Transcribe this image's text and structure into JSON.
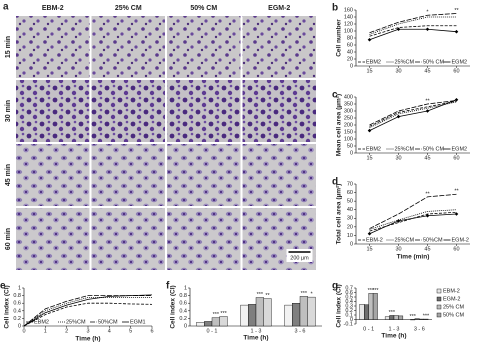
{
  "micrograph_panel": {
    "panel": "a",
    "columns": [
      "EBM-2",
      "25% CM",
      "50% CM",
      "EGM-2"
    ],
    "rows": [
      "15 min",
      "30 min",
      "45 min",
      "60 min"
    ],
    "scale_bar": "200 µm"
  },
  "chart_data": [
    {
      "panel": "b",
      "type": "line",
      "ylabel": "Cell number",
      "x": [
        15,
        30,
        45,
        60
      ],
      "xlim": [
        8,
        67
      ],
      "xticks": [
        15,
        30,
        45,
        60
      ],
      "ylim": [
        0,
        160
      ],
      "yticks": [
        0,
        20,
        40,
        60,
        80,
        100,
        120,
        140,
        160
      ],
      "legend": "bottom",
      "series": [
        {
          "name": "EBM2",
          "color": "#000000",
          "style": "dashed",
          "values": [
            85,
            110,
            115,
            115
          ]
        },
        {
          "name": "25%CM",
          "color": "#000000",
          "style": "dotted",
          "values": [
            90,
            120,
            140,
            140
          ]
        },
        {
          "name": "50% CM",
          "color": "#000000",
          "style": "longdash",
          "values": [
            95,
            125,
            145,
            150
          ]
        },
        {
          "name": "EGM2",
          "color": "#000000",
          "style": "solid",
          "marker": "diamond",
          "values": [
            75,
            105,
            105,
            98
          ]
        }
      ],
      "annotations": [
        {
          "text": "*",
          "x": 45
        },
        {
          "text": "**",
          "x": 60
        }
      ]
    },
    {
      "panel": "c",
      "type": "line",
      "ylabel": "Mean cell area (µm²)",
      "x": [
        15,
        30,
        45,
        60
      ],
      "xlim": [
        8,
        67
      ],
      "xticks": [
        15,
        30,
        45,
        60
      ],
      "ylim": [
        0,
        400
      ],
      "yticks": [
        0,
        50,
        100,
        150,
        200,
        250,
        300,
        350,
        400
      ],
      "legend": "bottom",
      "series": [
        {
          "name": "EBM2",
          "color": "#000000",
          "style": "dashed",
          "values": [
            190,
            290,
            330,
            370
          ]
        },
        {
          "name": "25%CM",
          "color": "#000000",
          "style": "dotted",
          "values": [
            180,
            280,
            320,
            365
          ]
        },
        {
          "name": "50% CM",
          "color": "#000000",
          "style": "longdash",
          "values": [
            200,
            300,
            350,
            375
          ]
        },
        {
          "name": "EGM2",
          "color": "#000000",
          "style": "solid",
          "marker": "diamond",
          "values": [
            160,
            260,
            300,
            380
          ]
        }
      ],
      "annotations": [
        {
          "text": "**",
          "x": 45
        }
      ]
    },
    {
      "panel": "d",
      "type": "line",
      "ylabel": "Total cell area (µm²)",
      "xlabel": "Time (min)",
      "x": [
        15,
        30,
        45,
        60
      ],
      "xlim": [
        8,
        67
      ],
      "xticks": [
        15,
        30,
        45,
        60
      ],
      "ylim": [
        0,
        70
      ],
      "yticks": [
        0,
        10,
        20,
        30,
        40,
        50,
        60,
        70
      ],
      "legend": "bottom",
      "series": [
        {
          "name": "EBM-2",
          "color": "#000000",
          "style": "dashed",
          "values": [
            15,
            25,
            35,
            37
          ]
        },
        {
          "name": "25%CM",
          "color": "#000000",
          "style": "dotted",
          "values": [
            17,
            28,
            38,
            40
          ]
        },
        {
          "name": "50%CM",
          "color": "#000000",
          "style": "longdash",
          "values": [
            18,
            35,
            55,
            58
          ]
        },
        {
          "name": "EGM-2",
          "color": "#000000",
          "style": "solid",
          "marker": "diamond",
          "values": [
            12,
            27,
            33,
            35
          ]
        }
      ],
      "annotations": [
        {
          "text": "**",
          "x": 45
        },
        {
          "text": "**",
          "x": 60
        }
      ]
    },
    {
      "panel": "e",
      "type": "line",
      "ylabel": "Cell index (CI)",
      "xlabel": "Time (h)",
      "x": [
        0,
        1,
        2,
        3,
        4,
        5,
        6
      ],
      "xlim": [
        0,
        6
      ],
      "xticks": [
        0,
        1,
        2,
        3,
        4,
        5,
        6
      ],
      "ylim": [
        0,
        1
      ],
      "yticks": [
        0,
        0.2,
        0.4,
        0.6,
        0.8,
        1
      ],
      "legend": "bottom",
      "series": [
        {
          "name": "EBM2",
          "color": "#000000",
          "style": "dashed",
          "values": [
            0,
            0.3,
            0.5,
            0.6,
            0.6,
            0.58,
            0.57
          ]
        },
        {
          "name": "25%CM",
          "color": "#000000",
          "style": "dotted",
          "values": [
            0,
            0.4,
            0.6,
            0.75,
            0.75,
            0.75,
            0.75
          ]
        },
        {
          "name": "50%CM",
          "color": "#000000",
          "style": "longdash",
          "values": [
            0,
            0.45,
            0.65,
            0.8,
            0.8,
            0.8,
            0.8
          ]
        },
        {
          "name": "EGM1",
          "color": "#000000",
          "style": "solid",
          "values": [
            0,
            0.35,
            0.55,
            0.7,
            0.78,
            0.8,
            0.82
          ]
        }
      ]
    },
    {
      "panel": "f",
      "type": "bar",
      "ylabel": "Cell index (CI)",
      "xlabel": "Time (h)",
      "categories": [
        "0 - 1",
        "1 - 3",
        "3 - 6"
      ],
      "ylim": [
        0,
        1
      ],
      "yticks": [
        0,
        0.2,
        0.4,
        0.6,
        0.8,
        1
      ],
      "series": [
        {
          "name": "EBM-2",
          "color": "#f2f2f2",
          "values": [
            0.1,
            0.55,
            0.55
          ]
        },
        {
          "name": "EGM-2",
          "color": "#7f7f7f",
          "values": [
            0.12,
            0.57,
            0.6
          ]
        },
        {
          "name": "25% CM",
          "color": "#bfbfbf",
          "values": [
            0.22,
            0.75,
            0.78
          ]
        },
        {
          "name": "50% CM",
          "color": "#d9d9d9",
          "values": [
            0.25,
            0.72,
            0.76
          ]
        }
      ],
      "annotations": [
        {
          "text": "***",
          "category": 0,
          "series": 2
        },
        {
          "text": "***",
          "category": 0,
          "series": 3
        },
        {
          "text": "***",
          "category": 1,
          "series": 2
        },
        {
          "text": "**",
          "category": 1,
          "series": 3
        },
        {
          "text": "***",
          "category": 2,
          "series": 2
        },
        {
          "text": "*",
          "category": 2,
          "series": 3
        }
      ]
    },
    {
      "panel": "g",
      "type": "bar",
      "ylabel": "Cell index (CI)",
      "xlabel": "Time (h)",
      "categories": [
        "0 - 1",
        "1 - 3",
        "3 - 6"
      ],
      "ylim": [
        -0.1,
        0.7
      ],
      "yticks": [
        -0.1,
        0,
        0.1,
        0.2,
        0.3,
        0.4,
        0.5,
        0.6,
        0.7
      ],
      "legend": "right",
      "series": [
        {
          "name": "EBM-2",
          "color": "#e6e6e6",
          "values": [
            0.34,
            0.06,
            -0.01
          ]
        },
        {
          "name": "EGM-2",
          "color": "#6f6f6f",
          "values": [
            0.33,
            0.09,
            0.02
          ]
        },
        {
          "name": "25% CM",
          "color": "#bfbfbf",
          "values": [
            0.58,
            0.09,
            0.01
          ]
        },
        {
          "name": "50% CM",
          "color": "#a6a6a6",
          "values": [
            0.58,
            0.08,
            0.01
          ]
        }
      ],
      "annotations": [
        {
          "text": "***",
          "category": 0,
          "series": 2
        },
        {
          "text": "***",
          "category": 0,
          "series": 3
        },
        {
          "text": "***",
          "category": 1,
          "series": 1
        },
        {
          "text": "***",
          "category": 2,
          "series": 0
        },
        {
          "text": "***",
          "category": 2,
          "series": 3
        }
      ]
    }
  ]
}
